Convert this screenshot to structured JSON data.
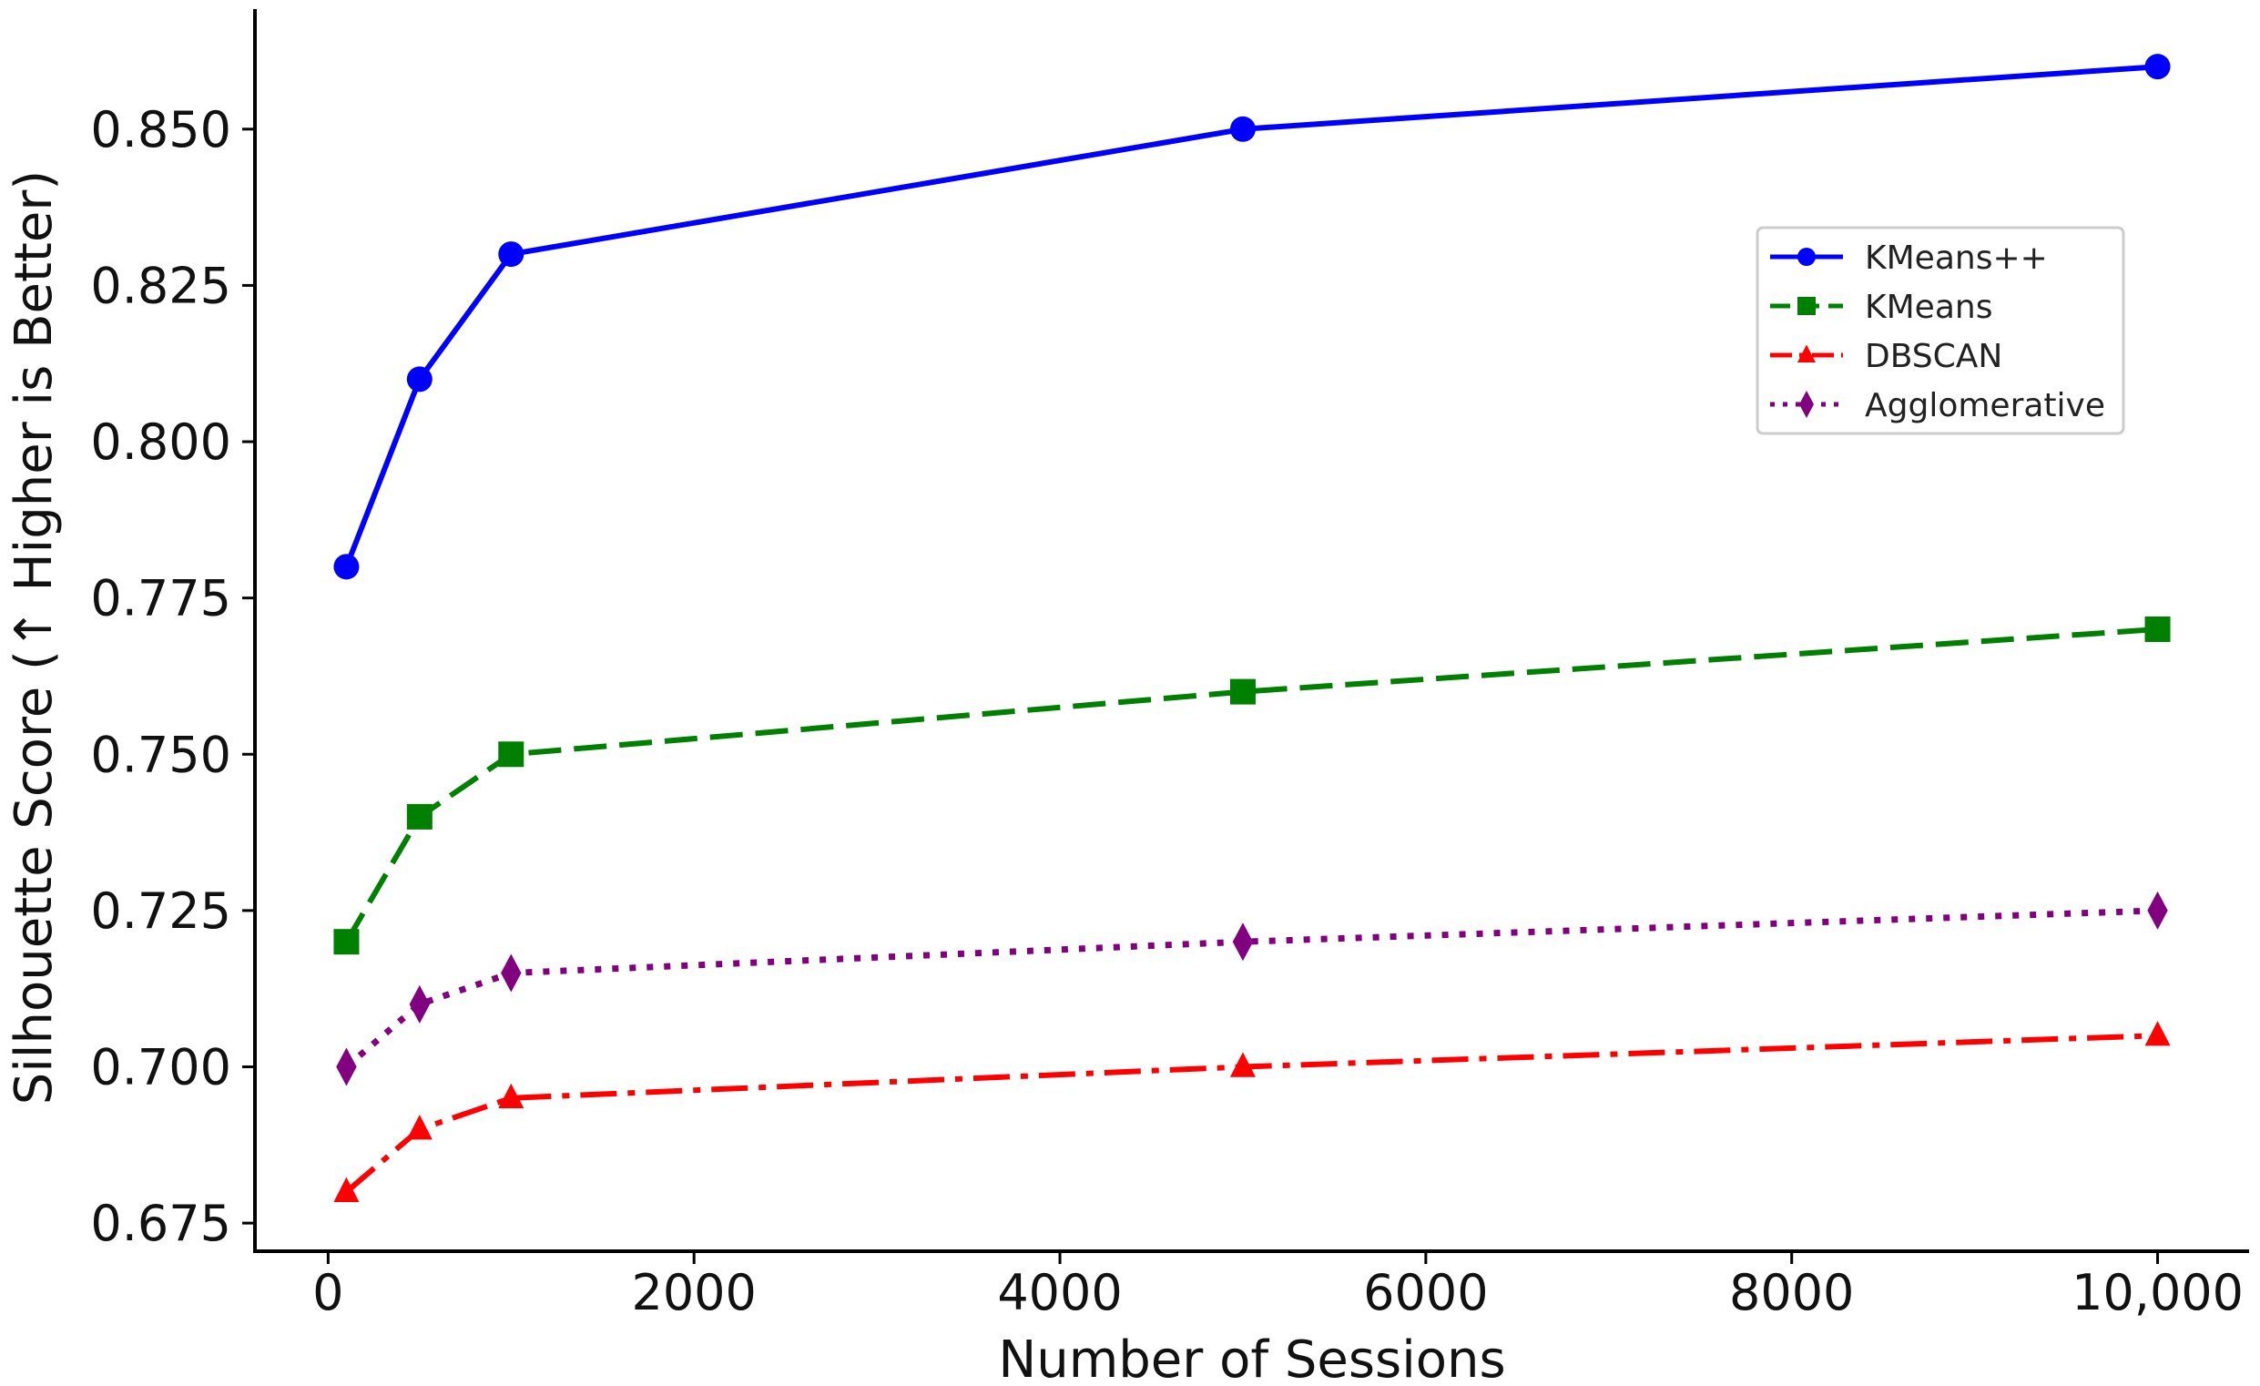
{
  "chart_data": {
    "type": "line",
    "xlabel": "Number of Sessions",
    "ylabel": "Silhouette Score (↑ Higher is Better)",
    "xlim": [
      -400,
      10500
    ],
    "ylim": [
      0.6705,
      0.8692
    ],
    "x_ticks": [
      0,
      2000,
      4000,
      6000,
      8000,
      10000
    ],
    "x_tick_labels": [
      "0",
      "2000",
      "4000",
      "6000",
      "8000",
      "10,000"
    ],
    "y_ticks": [
      0.675,
      0.7,
      0.725,
      0.75,
      0.775,
      0.8,
      0.825,
      0.85
    ],
    "y_tick_labels": [
      "0.675",
      "0.700",
      "0.725",
      "0.750",
      "0.775",
      "0.800",
      "0.825",
      "0.850"
    ],
    "grid": false,
    "legend_position": "upper-right",
    "x": [
      100,
      500,
      1000,
      5000,
      10000
    ],
    "series": [
      {
        "name": "KMeans++",
        "values": [
          0.78,
          0.81,
          0.83,
          0.85,
          0.86
        ],
        "color": "#0000ff",
        "dash": "solid",
        "marker": "circle"
      },
      {
        "name": "KMeans",
        "values": [
          0.72,
          0.74,
          0.75,
          0.76,
          0.77
        ],
        "color": "#008000",
        "dash": "dashed",
        "marker": "square"
      },
      {
        "name": "DBSCAN",
        "values": [
          0.68,
          0.69,
          0.695,
          0.7,
          0.705
        ],
        "color": "#ff0000",
        "dash": "dashdot",
        "marker": "triangle"
      },
      {
        "name": "Agglomerative",
        "values": [
          0.7,
          0.71,
          0.715,
          0.72,
          0.725
        ],
        "color": "#800080",
        "dash": "dotted",
        "marker": "diamond"
      }
    ]
  }
}
